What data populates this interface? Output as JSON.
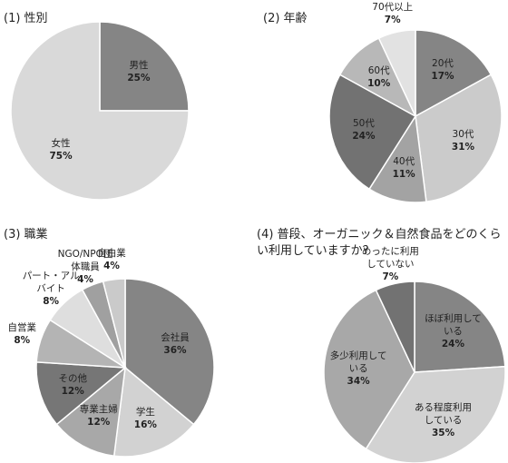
{
  "chart_data": [
    {
      "type": "pie",
      "title": "(1) 性別",
      "categories": [
        "男性",
        "女性"
      ],
      "values": [
        25,
        75
      ],
      "value_labels": [
        "25%",
        "75%"
      ],
      "colors": [
        "#858585",
        "#d9d9d9"
      ]
    },
    {
      "type": "pie",
      "title": "(2) 年齢",
      "categories": [
        "20代",
        "30代",
        "40代",
        "50代",
        "60代",
        "70代以上"
      ],
      "values": [
        17,
        31,
        11,
        24,
        10,
        7
      ],
      "value_labels": [
        "17%",
        "31%",
        "11%",
        "24%",
        "10%",
        "7%"
      ],
      "colors": [
        "#858585",
        "#cbcbcb",
        "#a3a3a3",
        "#727272",
        "#b8b8b8",
        "#e2e2e2"
      ]
    },
    {
      "type": "pie",
      "title": "(3) 職業",
      "categories": [
        "会社員",
        "学生",
        "専業主婦",
        "その他",
        "自営業",
        "パート・アルバイト",
        "NGO/NPO団体職員",
        "自由業"
      ],
      "values": [
        36,
        16,
        12,
        12,
        8,
        8,
        4,
        4
      ],
      "value_labels": [
        "36%",
        "16%",
        "12%",
        "12%",
        "8%",
        "8%",
        "4%",
        "4%"
      ],
      "colors": [
        "#858585",
        "#d2d2d2",
        "#a8a8a8",
        "#767676",
        "#b4b4b4",
        "#dedede",
        "#a0a0a0",
        "#cacaca"
      ]
    },
    {
      "type": "pie",
      "title": "(4) 普段、オーガニック＆自然食品をどのくらい利用していますか？",
      "categories": [
        "ほぼ利用している",
        "ある程度利用している",
        "多少利用している",
        "めったに利用していない"
      ],
      "values": [
        24,
        35,
        34,
        7
      ],
      "value_labels": [
        "24%",
        "35%",
        "34%",
        "7%"
      ],
      "colors": [
        "#858585",
        "#d2d2d2",
        "#a8a8a8",
        "#727272"
      ]
    }
  ]
}
